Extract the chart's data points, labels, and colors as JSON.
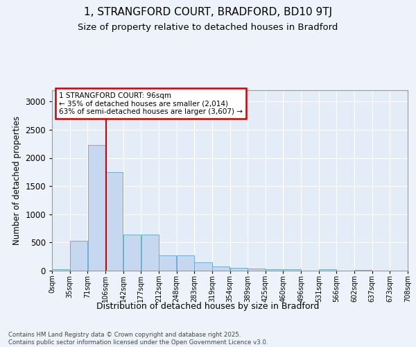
{
  "title": "1, STRANGFORD COURT, BRADFORD, BD10 9TJ",
  "subtitle": "Size of property relative to detached houses in Bradford",
  "xlabel": "Distribution of detached houses by size in Bradford",
  "ylabel": "Number of detached properties",
  "bar_values": [
    30,
    530,
    2230,
    1750,
    635,
    635,
    270,
    270,
    145,
    70,
    50,
    40,
    30,
    25,
    0,
    20,
    0,
    8,
    5,
    5
  ],
  "categories": [
    "0sqm",
    "35sqm",
    "71sqm",
    "106sqm",
    "142sqm",
    "177sqm",
    "212sqm",
    "248sqm",
    "283sqm",
    "319sqm",
    "354sqm",
    "389sqm",
    "425sqm",
    "460sqm",
    "496sqm",
    "531sqm",
    "566sqm",
    "602sqm",
    "637sqm",
    "673sqm",
    "708sqm"
  ],
  "bar_color": "#c5d8f0",
  "bar_edge_color": "#6baed6",
  "background_color": "#eef2fa",
  "plot_bg_color": "#e4ecf7",
  "grid_color": "#ffffff",
  "redline_x": 2.55,
  "annotation_text": "1 STRANGFORD COURT: 96sqm\n← 35% of detached houses are smaller (2,014)\n63% of semi-detached houses are larger (3,607) →",
  "annotation_box_color": "#ffffff",
  "annotation_box_edge_color": "#cc0000",
  "redline_color": "#cc0000",
  "yticks": [
    0,
    500,
    1000,
    1500,
    2000,
    2500,
    3000
  ],
  "ylim": [
    0,
    3200
  ],
  "footer": "Contains HM Land Registry data © Crown copyright and database right 2025.\nContains public sector information licensed under the Open Government Licence v3.0."
}
